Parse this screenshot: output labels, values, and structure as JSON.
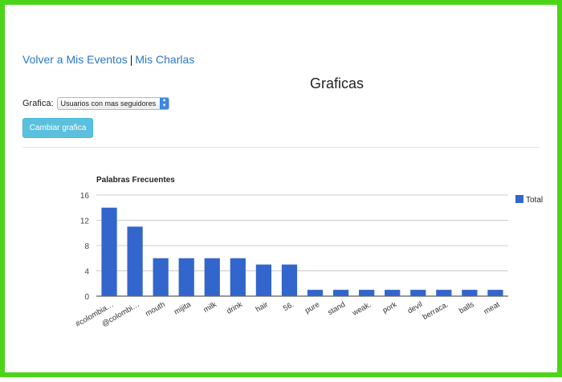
{
  "nav": {
    "link1": "Volver a Mis Eventos",
    "separator": "|",
    "link2": "Mis Charlas"
  },
  "page": {
    "title": "Graficas"
  },
  "selector": {
    "label": "Grafica:",
    "value": "Usuarios con mas seguidores"
  },
  "button": {
    "label": "Cambiar grafica"
  },
  "colors": {
    "bar": "#3366cc",
    "link": "#2a78c2",
    "button": "#5bc0de",
    "frame": "#4cd419"
  },
  "chart_data": {
    "type": "bar",
    "title": "Palabras Frecuentes",
    "categories": [
      "#colombia…",
      "@colombi…",
      "mouth",
      "mijita",
      "milk",
      "drink",
      "hair",
      "56.",
      "pure",
      "stand",
      "weak.",
      "pork",
      "devil",
      "berraca.",
      "balls",
      "meat"
    ],
    "series": [
      {
        "name": "Total",
        "values": [
          14,
          11,
          6,
          6,
          6,
          6,
          5,
          5,
          1,
          1,
          1,
          1,
          1,
          1,
          1,
          1
        ]
      }
    ],
    "yticks": [
      0,
      4,
      8,
      12,
      16
    ],
    "ylim": [
      0,
      16
    ],
    "grid": true,
    "legend": "right"
  }
}
